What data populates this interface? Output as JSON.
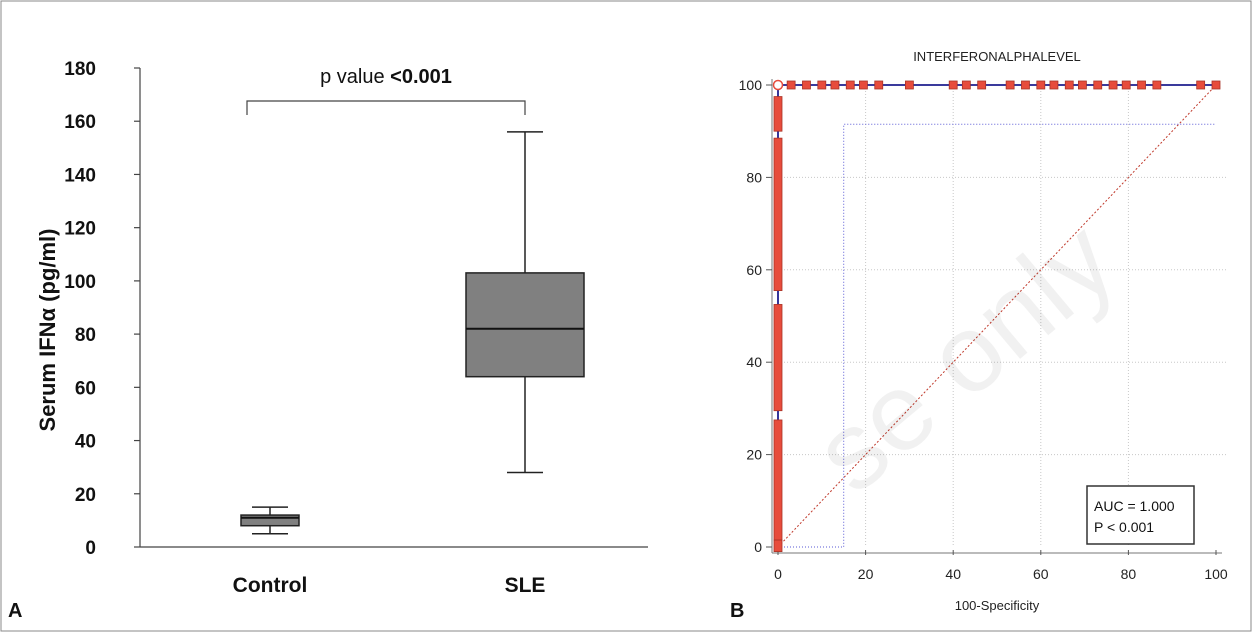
{
  "panels": {
    "a_label": "A",
    "b_label": "B"
  },
  "watermark": "se only",
  "chart_data": [
    {
      "type": "box",
      "ylabel": "Serum IFNα (pg/ml)",
      "ylim": [
        0,
        180
      ],
      "y_ticks": [
        "0",
        "20",
        "40",
        "60",
        "80",
        "100",
        "120",
        "140",
        "160",
        "180"
      ],
      "categories": [
        "Control",
        "SLE"
      ],
      "boxes": [
        {
          "name": "Control",
          "min": 5,
          "q1": 8,
          "median": 11,
          "q3": 12,
          "max": 15
        },
        {
          "name": "SLE",
          "min": 28,
          "q1": 64,
          "median": 82,
          "q3": 103,
          "max": 156
        }
      ],
      "annotation": {
        "prefix": "p value ",
        "value": "<0.001"
      },
      "fill_color": "#808080"
    },
    {
      "type": "line",
      "title": "INTERFERONALPHALEVEL",
      "xlabel": "100-Specificity",
      "ylabel": "",
      "xlim": [
        0,
        100
      ],
      "ylim": [
        0,
        100
      ],
      "x_ticks": [
        "0",
        "20",
        "40",
        "60",
        "80",
        "100"
      ],
      "y_ticks": [
        "0",
        "20",
        "40",
        "60",
        "80",
        "100"
      ],
      "grid": true,
      "roc_curve": [
        [
          0,
          0
        ],
        [
          0,
          100
        ],
        [
          100,
          100
        ]
      ],
      "criterion_line": [
        [
          0,
          0
        ],
        [
          15,
          0
        ],
        [
          15,
          91.5
        ],
        [
          100,
          91.5
        ]
      ],
      "reference_line": [
        [
          0,
          0
        ],
        [
          100,
          100
        ]
      ],
      "open_point": [
        0,
        100
      ],
      "top_markers_x": [
        3,
        6.5,
        10,
        13,
        16.5,
        19.5,
        23,
        30,
        40,
        43,
        46.5,
        53,
        56.5,
        60,
        63,
        66.5,
        69.5,
        73,
        76.5,
        79.5,
        83,
        86.5,
        96.5,
        100
      ],
      "left_markers_y": [
        [
          55.5,
          88.5
        ],
        [
          29.5,
          52.5
        ],
        [
          1.5,
          27.5
        ],
        [
          -1,
          1.5
        ],
        [
          90,
          97.5
        ]
      ],
      "annotation_box": {
        "line1": "AUC = 1.000",
        "line2": "P < 0.001"
      },
      "colors": {
        "curve": "#1f1f8f",
        "marker": "#e74c3c",
        "marker_edge": "#a93226",
        "reference": "#c0392b",
        "criterion": "#5a5ad6"
      }
    }
  ]
}
